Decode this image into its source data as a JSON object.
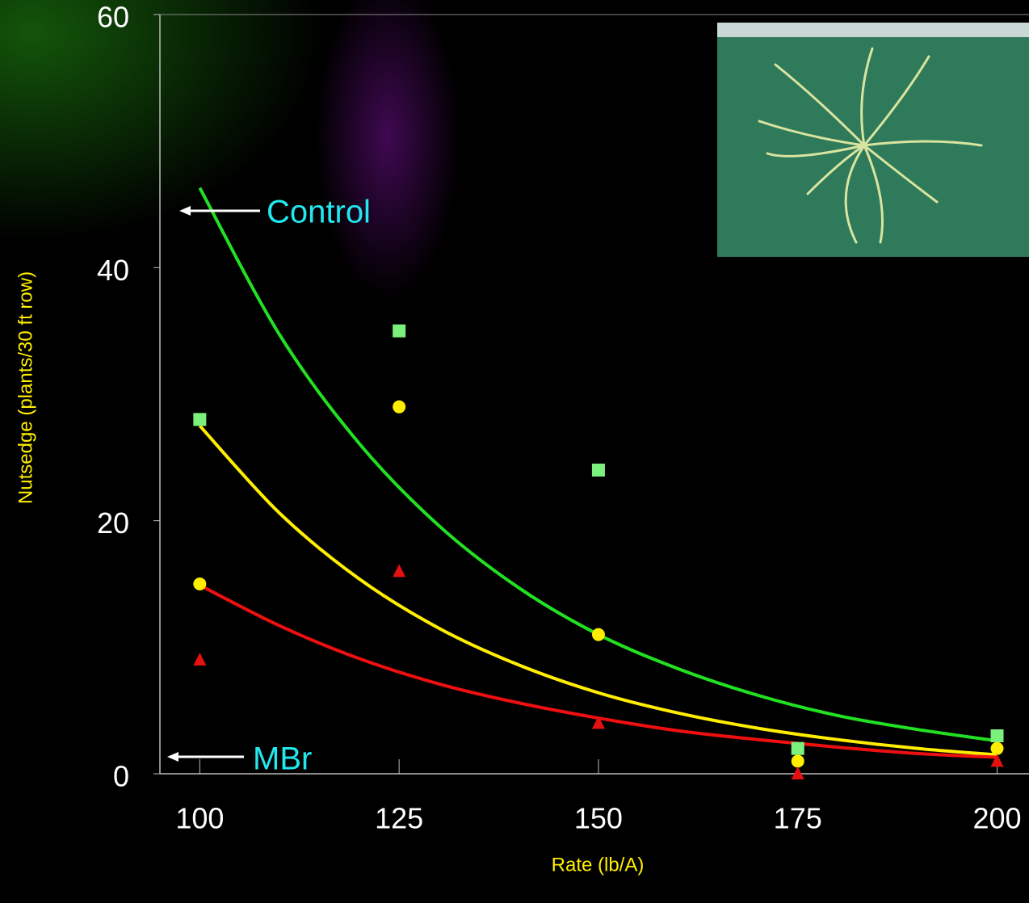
{
  "chart_data": {
    "type": "scatter",
    "xlabel": "Rate (lb/A)",
    "ylabel": "Nutsedge (plants/30 ft row)",
    "xlim": [
      95,
      204
    ],
    "ylim": [
      0,
      60
    ],
    "xticks": [
      100,
      125,
      150,
      175,
      200
    ],
    "yticks": [
      0,
      20,
      40,
      60
    ],
    "x": [
      100,
      125,
      150,
      175,
      200
    ],
    "series": [
      {
        "color": "#7cf07c",
        "marker": "square",
        "values": [
          28,
          35,
          24,
          2,
          3
        ]
      },
      {
        "color": "#ffee00",
        "marker": "circle",
        "values": [
          15,
          29,
          11,
          1,
          2
        ]
      },
      {
        "color": "#e51010",
        "marker": "triangle",
        "values": [
          9,
          16,
          4,
          0,
          1
        ]
      }
    ],
    "fit_x": [
      100,
      110,
      120,
      130,
      140,
      150,
      160,
      170,
      180,
      190,
      200
    ],
    "fits": [
      {
        "color": "#22e022",
        "values": [
          46.3,
          34.7,
          26.1,
          19.6,
          14.7,
          11.0,
          8.3,
          6.2,
          4.6,
          3.5,
          2.6
        ]
      },
      {
        "color": "#ffee00",
        "values": [
          27.5,
          20.6,
          15.4,
          11.5,
          8.6,
          6.4,
          4.8,
          3.6,
          2.7,
          2.0,
          1.5
        ]
      },
      {
        "color": "#ee1010",
        "values": [
          14.9,
          11.7,
          9.1,
          7.1,
          5.6,
          4.4,
          3.4,
          2.7,
          2.1,
          1.6,
          1.3
        ]
      }
    ],
    "annotations": [
      {
        "text": "Control",
        "color": "#22e8f0"
      },
      {
        "text": "MBr",
        "color": "#22e8f0"
      }
    ]
  }
}
